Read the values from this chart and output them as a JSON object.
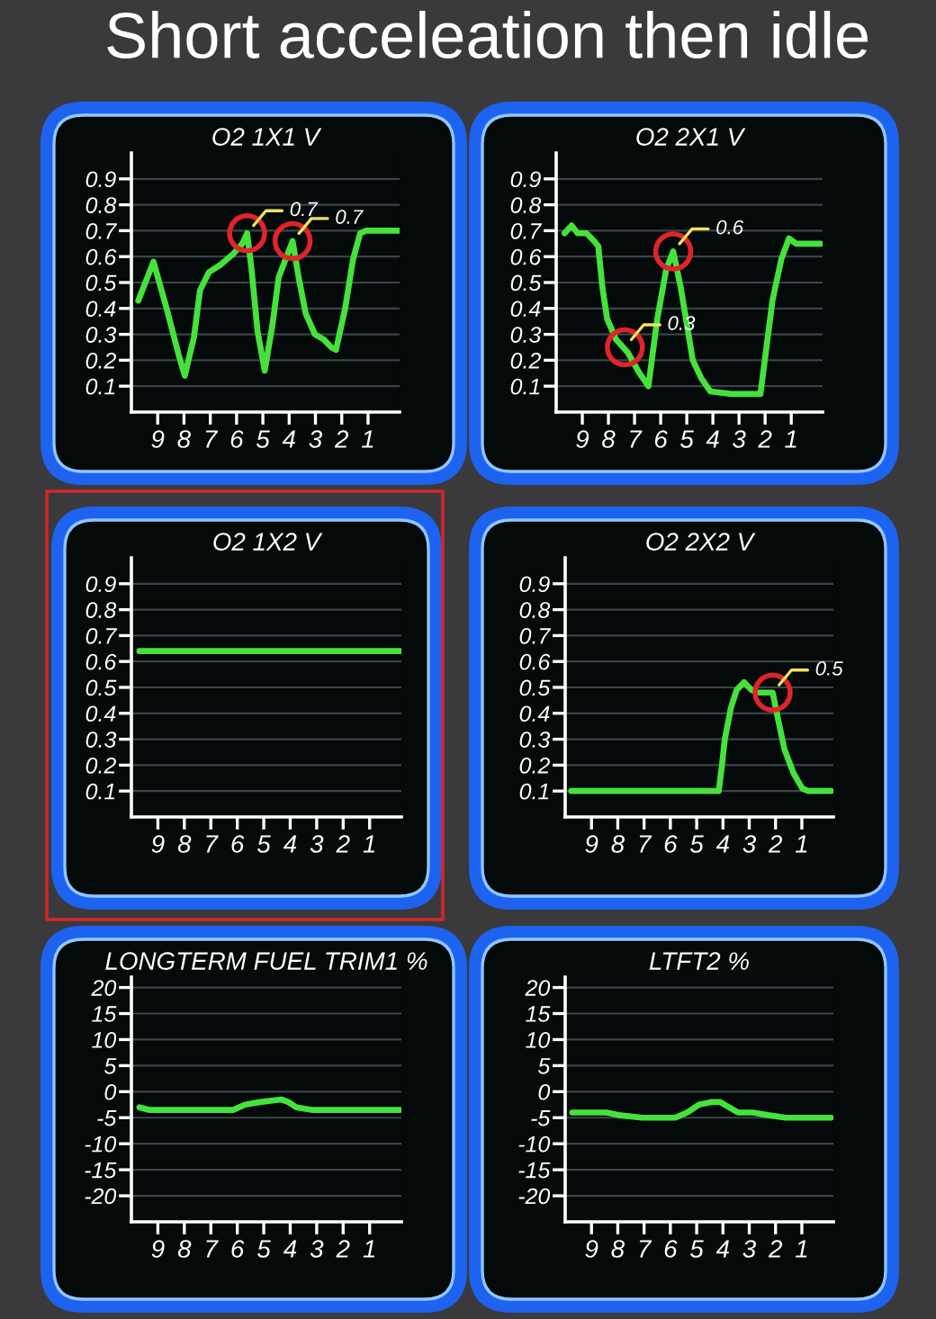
{
  "chart_data": [
    {
      "type": "line",
      "title": "O2 1X1 V",
      "xlim": [
        10,
        -0.2
      ],
      "xticks": [
        9,
        8,
        7,
        6,
        5,
        4,
        3,
        2,
        1
      ],
      "ylim": [
        0,
        1
      ],
      "yticks": [
        0.1,
        0.2,
        0.3,
        0.4,
        0.5,
        0.6,
        0.7,
        0.8,
        0.9
      ],
      "grid": "y",
      "series": [
        {
          "color": "#46e23c",
          "x": [
            9.74,
            9.16,
            8.66,
            8.2,
            7.97,
            7.62,
            7.39,
            7.05,
            6.59,
            6.13,
            5.78,
            5.6,
            5.44,
            5.2,
            4.93,
            4.63,
            4.4,
            4.06,
            3.87,
            3.64,
            3.37,
            3.02,
            2.68,
            2.4,
            2.22,
            1.87,
            1.57,
            1.3,
            1.07,
            -0.2
          ],
          "values": [
            0.43,
            0.58,
            0.4,
            0.22,
            0.14,
            0.29,
            0.47,
            0.54,
            0.57,
            0.61,
            0.65,
            0.69,
            0.56,
            0.31,
            0.16,
            0.34,
            0.52,
            0.61,
            0.66,
            0.52,
            0.38,
            0.3,
            0.28,
            0.25,
            0.24,
            0.4,
            0.59,
            0.69,
            0.7,
            0.7
          ]
        }
      ],
      "annotations": [
        "Short acceleation then idle",
        {
          "text": "0.7",
          "x": 5.6,
          "y": 0.69
        },
        {
          "text": "0.7",
          "x": 3.87,
          "y": 0.66
        }
      ]
    },
    {
      "type": "line",
      "title": "O2 2X1 V",
      "xlim": [
        10,
        -0.2
      ],
      "xticks": [
        9,
        8,
        7,
        6,
        5,
        4,
        3,
        2,
        1
      ],
      "ylim": [
        0,
        1
      ],
      "yticks": [
        0.1,
        0.2,
        0.3,
        0.4,
        0.5,
        0.6,
        0.7,
        0.8,
        0.9
      ],
      "grid": "y",
      "series": [
        {
          "color": "#46e23c",
          "x": [
            9.68,
            9.41,
            9.18,
            8.84,
            8.55,
            8.39,
            8.23,
            8.05,
            7.71,
            7.26,
            6.81,
            6.47,
            6.13,
            5.79,
            5.52,
            5.23,
            5.0,
            4.77,
            4.44,
            4.1,
            3.3,
            2.18,
            1.95,
            1.72,
            1.38,
            1.09,
            0.82,
            -0.13
          ],
          "values": [
            0.69,
            0.72,
            0.69,
            0.69,
            0.66,
            0.64,
            0.48,
            0.36,
            0.28,
            0.23,
            0.15,
            0.1,
            0.36,
            0.55,
            0.62,
            0.48,
            0.34,
            0.2,
            0.13,
            0.08,
            0.07,
            0.07,
            0.25,
            0.43,
            0.59,
            0.67,
            0.65,
            0.65
          ]
        }
      ],
      "annotations": [
        {
          "text": "0.3",
          "x": 7.37,
          "y": 0.25
        },
        {
          "text": "0.6",
          "x": 5.52,
          "y": 0.62
        }
      ]
    },
    {
      "type": "line",
      "title": "O2 1X2 V",
      "xlim": [
        10,
        -0.2
      ],
      "xticks": [
        9,
        8,
        7,
        6,
        5,
        4,
        3,
        2,
        1
      ],
      "ylim": [
        0,
        1
      ],
      "yticks": [
        0.1,
        0.2,
        0.3,
        0.4,
        0.5,
        0.6,
        0.7,
        0.8,
        0.9
      ],
      "grid": "y",
      "series": [
        {
          "color": "#46e23c",
          "x": [
            9.7,
            -0.16
          ],
          "values": [
            0.64,
            0.64
          ]
        }
      ]
    },
    {
      "type": "line",
      "title": "O2 2X2 V",
      "xlim": [
        10,
        -0.2
      ],
      "xticks": [
        9,
        8,
        7,
        6,
        5,
        4,
        3,
        2,
        1
      ],
      "ylim": [
        0,
        1
      ],
      "yticks": [
        0.1,
        0.2,
        0.3,
        0.4,
        0.5,
        0.6,
        0.7,
        0.8,
        0.9
      ],
      "grid": "y",
      "series": [
        {
          "color": "#46e23c",
          "x": [
            9.77,
            4.16,
            4.05,
            3.93,
            3.7,
            3.48,
            3.2,
            2.91,
            2.68,
            2.11,
            1.89,
            1.66,
            1.32,
            0.98,
            0.75,
            -0.11
          ],
          "values": [
            0.1,
            0.1,
            0.19,
            0.3,
            0.42,
            0.49,
            0.52,
            0.49,
            0.48,
            0.48,
            0.37,
            0.26,
            0.17,
            0.11,
            0.1,
            0.1
          ]
        }
      ],
      "annotations": [
        {
          "text": "0.5",
          "x": 2.11,
          "y": 0.48
        }
      ]
    },
    {
      "type": "line",
      "title": "LONGTERM FUEL TRIM1 %",
      "xlim": [
        10,
        -0.2
      ],
      "xticks": [
        9,
        8,
        7,
        6,
        5,
        4,
        3,
        2,
        1
      ],
      "ylim": [
        -25,
        22
      ],
      "yticks": [
        20,
        15,
        10,
        5,
        0,
        -5,
        -10,
        -15,
        -20
      ],
      "grid": "y",
      "series": [
        {
          "color": "#46e23c",
          "x": [
            9.7,
            9.34,
            6.16,
            5.7,
            5.14,
            4.34,
            4.07,
            3.77,
            3.2,
            -0.16
          ],
          "values": [
            -3,
            -3.5,
            -3.5,
            -2.5,
            -2,
            -1.5,
            -2,
            -3,
            -3.5,
            -3.5
          ]
        }
      ]
    },
    {
      "type": "line",
      "title": "LTFT2 %",
      "xlim": [
        10,
        -0.2
      ],
      "xticks": [
        9,
        8,
        7,
        6,
        5,
        4,
        3,
        2,
        1
      ],
      "ylim": [
        -25,
        22
      ],
      "yticks": [
        20,
        15,
        10,
        5,
        0,
        -5,
        -10,
        -15,
        -20
      ],
      "grid": "y",
      "series": [
        {
          "color": "#46e23c",
          "x": [
            9.73,
            8.43,
            7.98,
            7.07,
            5.82,
            5.36,
            4.91,
            4.45,
            4.11,
            3.77,
            3.43,
            2.86,
            2.3,
            1.61,
            -0.11
          ],
          "values": [
            -4,
            -4,
            -4.5,
            -5,
            -5,
            -4,
            -2.5,
            -2,
            -2,
            -3,
            -4,
            -4,
            -4.5,
            -5,
            -5
          ]
        }
      ]
    }
  ]
}
